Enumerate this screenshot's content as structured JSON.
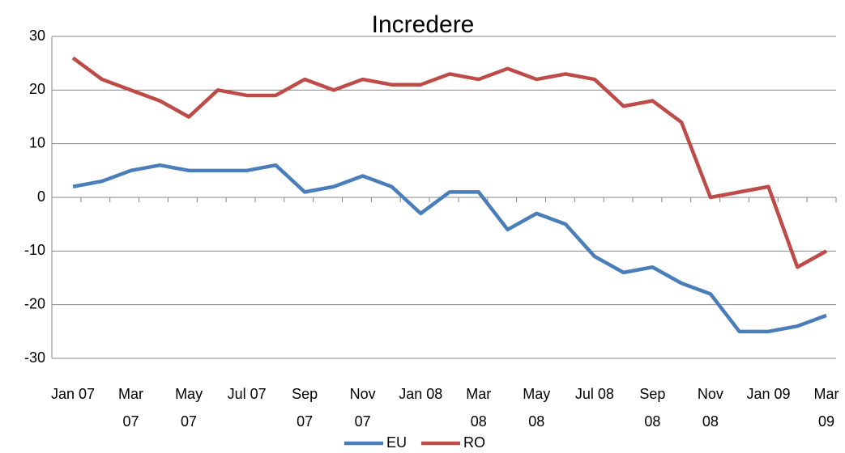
{
  "chart_data": {
    "type": "line",
    "title": "Incredere",
    "categories": [
      "Jan 07",
      null,
      "Mar 07",
      null,
      "May 07",
      null,
      "Jul 07",
      null,
      "Sep 07",
      null,
      "Nov 07",
      null,
      "Jan 08",
      null,
      "Mar 08",
      null,
      "May 08",
      null,
      "Jul 08",
      null,
      "Sep 08",
      null,
      "Nov 08",
      null,
      "Jan 09",
      null,
      "Mar 09"
    ],
    "series": [
      {
        "name": "EU",
        "color": "#4a7ebb",
        "values": [
          2,
          3,
          5,
          6,
          5,
          5,
          5,
          6,
          1,
          2,
          4,
          2,
          -3,
          1,
          1,
          -6,
          -3,
          -5,
          -11,
          -14,
          -13,
          -16,
          -18,
          -25,
          -25,
          -24,
          -22
        ]
      },
      {
        "name": "RO",
        "color": "#be4b48",
        "values": [
          26,
          22,
          20,
          18,
          15,
          20,
          19,
          19,
          22,
          20,
          22,
          21,
          21,
          23,
          22,
          24,
          22,
          23,
          22,
          17,
          18,
          14,
          0,
          1,
          2,
          -13,
          -10
        ]
      }
    ],
    "ylim": [
      -30,
      30
    ],
    "yticks": [
      -30,
      -20,
      -10,
      0,
      10,
      20,
      30
    ],
    "grid": true,
    "legend": "bottom"
  }
}
